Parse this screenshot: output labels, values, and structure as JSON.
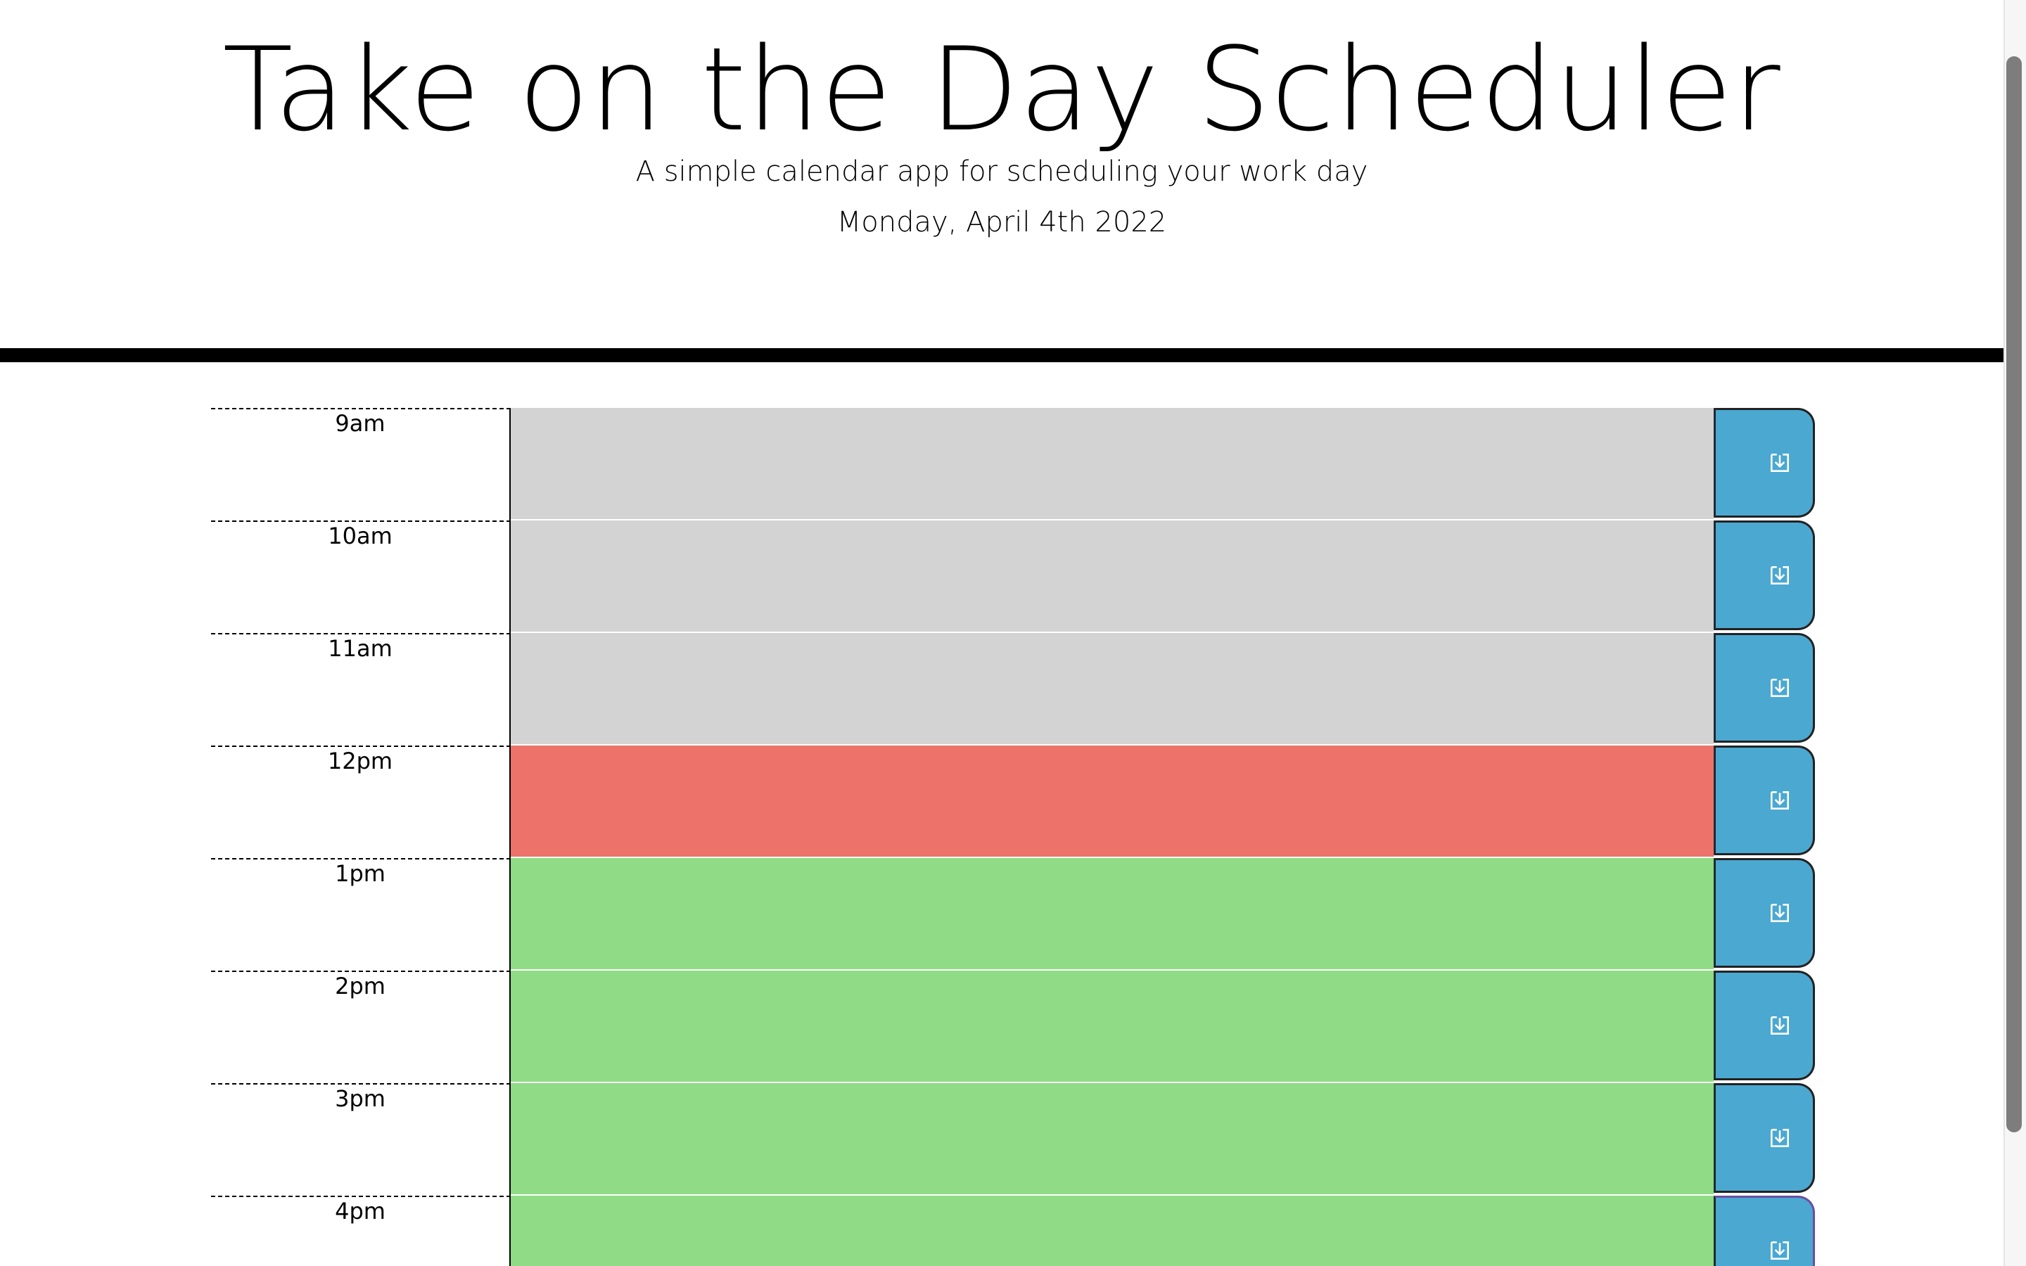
{
  "header": {
    "title": "Take on the Day Scheduler",
    "subtitle": "A simple calendar app for scheduling your work day",
    "current_day": "Monday, April 4th 2022"
  },
  "icons": {
    "save": "save-download-icon"
  },
  "colors": {
    "past": "#d3d3d3",
    "present": "#ed736a",
    "future": "#90db85",
    "save_button": "#4ba8d1",
    "header_rule": "#000000"
  },
  "timeblocks": [
    {
      "hour": "9am",
      "status": "past",
      "description": ""
    },
    {
      "hour": "10am",
      "status": "past",
      "description": ""
    },
    {
      "hour": "11am",
      "status": "past",
      "description": ""
    },
    {
      "hour": "12pm",
      "status": "present",
      "description": ""
    },
    {
      "hour": "1pm",
      "status": "future",
      "description": ""
    },
    {
      "hour": "2pm",
      "status": "future",
      "description": ""
    },
    {
      "hour": "3pm",
      "status": "future",
      "description": ""
    },
    {
      "hour": "4pm",
      "status": "future",
      "description": ""
    }
  ]
}
